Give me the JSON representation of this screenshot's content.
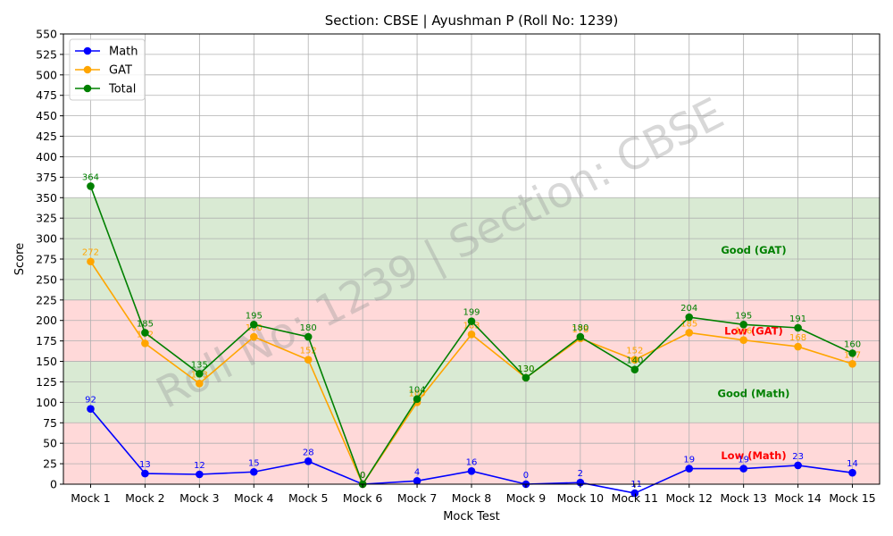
{
  "chart_data": {
    "type": "line",
    "title": "Section: CBSE | Ayushman P (Roll No: 1239)",
    "xlabel": "Mock Test",
    "ylabel": "Score",
    "ylim": [
      0,
      550
    ],
    "yticks": [
      0,
      25,
      50,
      75,
      100,
      125,
      150,
      175,
      200,
      225,
      250,
      275,
      300,
      325,
      350,
      375,
      400,
      425,
      450,
      475,
      500,
      525,
      550
    ],
    "grid": true,
    "legend_position": "top-left",
    "categories": [
      "Mock 1",
      "Mock 2",
      "Mock 3",
      "Mock 4",
      "Mock 5",
      "Mock 6",
      "Mock 7",
      "Mock 8",
      "Mock 9",
      "Mock 10",
      "Mock 11",
      "Mock 12",
      "Mock 13",
      "Mock 14",
      "Mock 15"
    ],
    "series": [
      {
        "name": "Math",
        "color": "#0000ff",
        "values": [
          92,
          13,
          12,
          15,
          28,
          0,
          4,
          16,
          0,
          2,
          -11,
          19,
          19,
          23,
          14
        ]
      },
      {
        "name": "GAT",
        "color": "#ffa500",
        "values": [
          272,
          172,
          123,
          180,
          152,
          0,
          100,
          183,
          130,
          178,
          152,
          185,
          176,
          168,
          147
        ]
      },
      {
        "name": "Total",
        "color": "#008000",
        "values": [
          364,
          185,
          135,
          195,
          180,
          0,
          104,
          199,
          130,
          180,
          140,
          204,
          195,
          191,
          160
        ]
      }
    ],
    "bands": [
      {
        "from": 0,
        "to": 75,
        "color": "#ffd9d9",
        "label": "Low (Math)",
        "label_value": 35,
        "label_color": "#ff0000"
      },
      {
        "from": 75,
        "to": 150,
        "color": "#d9ead3",
        "label": "Good (Math)",
        "label_value": 111,
        "label_color": "#008000"
      },
      {
        "from": 150,
        "to": 225,
        "color": "#ffd9d9",
        "label": "Low (GAT)",
        "label_value": 187,
        "label_color": "#ff0000"
      },
      {
        "from": 225,
        "to": 350,
        "color": "#d9ead3",
        "label": "Good (GAT)",
        "label_value": 286,
        "label_color": "#008000"
      }
    ],
    "watermark": "Roll No: 1239 | Section: CBSE"
  }
}
